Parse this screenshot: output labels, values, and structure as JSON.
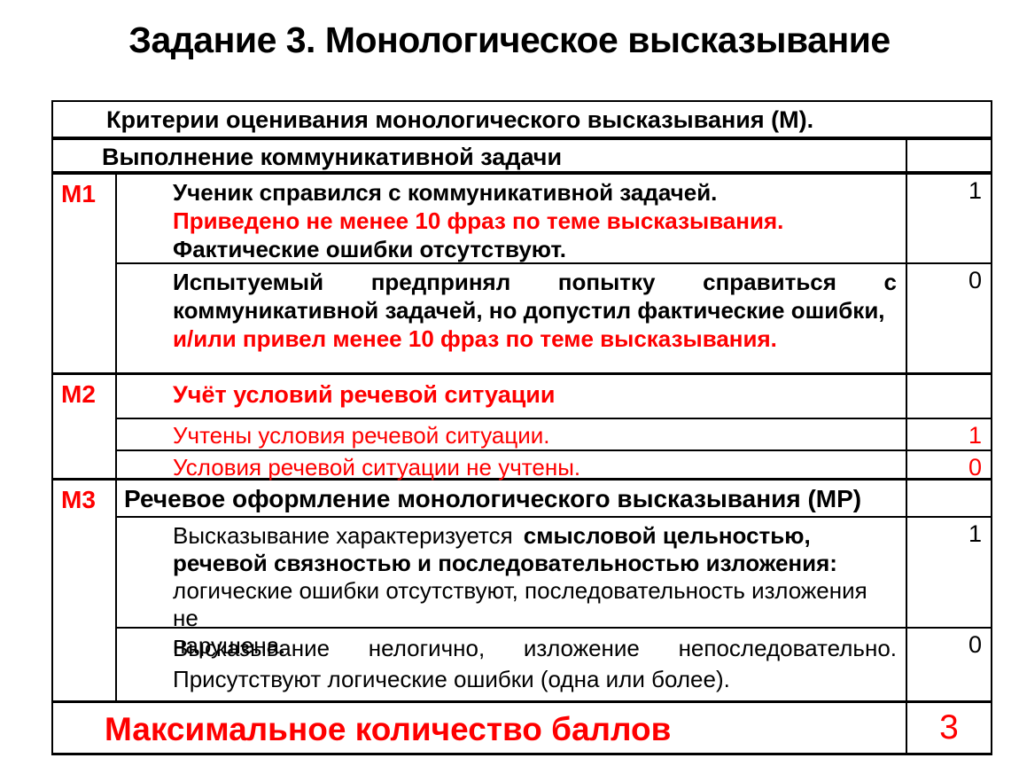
{
  "title": "Задание 3. Монологическое высказывание",
  "colors": {
    "accent_red": "#fe0000",
    "text_black": "#000000",
    "border_black": "#000000"
  },
  "table": {
    "header_row": "Критерии оценивания монологического высказывания (М).",
    "section_row": "Выполнение коммуникативной задачи",
    "m1": {
      "label": "М1",
      "score1": {
        "line1": "Ученик справился с коммуникативной задачей.",
        "line2": "Приведено не менее 10 фраз по теме высказывания.",
        "line3": "Фактические ошибки отсутствуют.",
        "score": "1"
      },
      "score0": {
        "line1": "Испытуемый предпринял попытку справиться с",
        "line2": "коммуникативной задачей, но допустил фактические ошибки,",
        "line3": "и/или привел менее 10 фраз по теме высказывания.",
        "score": "0"
      }
    },
    "m2": {
      "label": "М2",
      "header": "Учёт условий речевой ситуации",
      "score1": {
        "text": "Учтены условия речевой ситуации.",
        "score": "1"
      },
      "score0": {
        "text": "Условия речевой ситуации не учтены.",
        "score": "0"
      }
    },
    "m3": {
      "label": "М3",
      "header": "Речевое оформление монологического высказывания (МР)",
      "score1": {
        "line1_normal": "Высказывание характеризуется",
        "line1_bold": "смысловой цельностью,",
        "line2_bold": "речевой связностью и последовательностью изложения:",
        "line3": "логические ошибки отсутствуют, последовательность изложения не",
        "line4": "нарушена.",
        "score": "1"
      },
      "score0": {
        "line1": "Высказывание нелогично, изложение непоследовательно.",
        "line2": "Присутствуют логические ошибки (одна или более).",
        "score": "0"
      }
    },
    "footer": {
      "label": "Максимальное количество баллов",
      "score": "3"
    }
  }
}
